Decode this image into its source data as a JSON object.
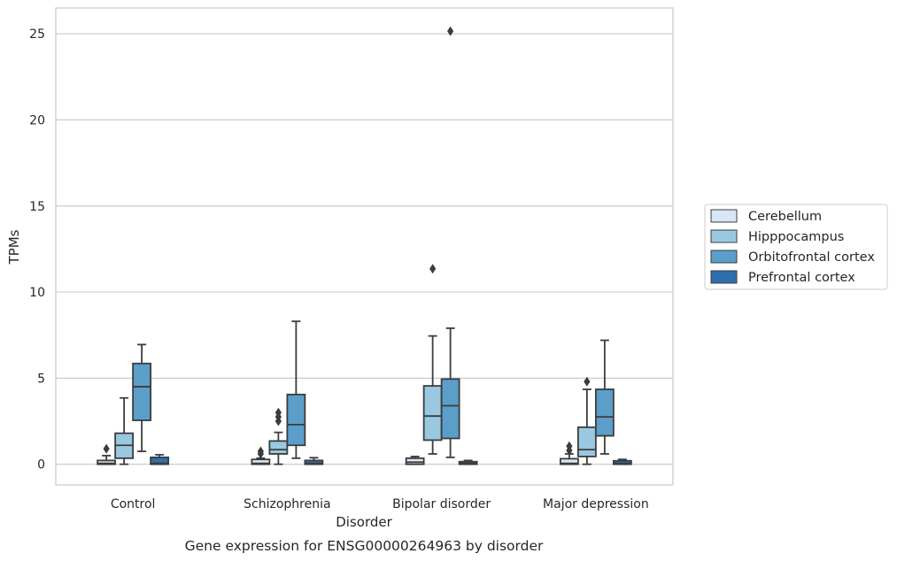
{
  "caption": "Gene expression for ENSG00000264963 by disorder",
  "chart_data": {
    "type": "box",
    "xlabel": "Disorder",
    "ylabel": "TPMs",
    "ylim": [
      -1.2,
      26.5
    ],
    "yticks": [
      0,
      5,
      10,
      15,
      20,
      25
    ],
    "grid": "horizontal",
    "legend_position": "right",
    "categories": [
      "Control",
      "Schizophrenia",
      "Bipolar disorder",
      "Major depression"
    ],
    "series": [
      {
        "name": "Cerebellum",
        "color": "#d8e7f5",
        "boxes": [
          {
            "whislo": 0,
            "q1": 0,
            "med": 0.05,
            "q3": 0.22,
            "whishi": 0.5,
            "fliers": [
              0.9
            ]
          },
          {
            "whislo": 0,
            "q1": 0,
            "med": 0.05,
            "q3": 0.28,
            "whishi": 0.35,
            "fliers": [
              0.6,
              0.75
            ]
          },
          {
            "whislo": 0,
            "q1": 0,
            "med": 0.12,
            "q3": 0.35,
            "whishi": 0.45,
            "fliers": []
          },
          {
            "whislo": 0,
            "q1": 0,
            "med": 0.05,
            "q3": 0.32,
            "whishi": 0.6,
            "fliers": [
              0.8,
              1.05
            ]
          }
        ]
      },
      {
        "name": "Hipppocampus",
        "color": "#9ac8e0",
        "boxes": [
          {
            "whislo": 0,
            "q1": 0.35,
            "med": 1.1,
            "q3": 1.8,
            "whishi": 3.85,
            "fliers": []
          },
          {
            "whislo": 0,
            "q1": 0.6,
            "med": 0.85,
            "q3": 1.35,
            "whishi": 1.85,
            "fliers": [
              2.5,
              2.75,
              3.0
            ]
          },
          {
            "whislo": 0.6,
            "q1": 1.4,
            "med": 2.8,
            "q3": 4.55,
            "whishi": 7.45,
            "fliers": [
              11.35
            ]
          },
          {
            "whislo": 0,
            "q1": 0.45,
            "med": 0.85,
            "q3": 2.15,
            "whishi": 4.35,
            "fliers": [
              4.8
            ]
          }
        ]
      },
      {
        "name": "Orbitofrontal cortex",
        "color": "#5a9ec9",
        "boxes": [
          {
            "whislo": 0.75,
            "q1": 2.55,
            "med": 4.5,
            "q3": 5.85,
            "whishi": 6.95,
            "fliers": []
          },
          {
            "whislo": 0.35,
            "q1": 1.1,
            "med": 2.3,
            "q3": 4.05,
            "whishi": 8.3,
            "fliers": []
          },
          {
            "whislo": 0.4,
            "q1": 1.5,
            "med": 3.4,
            "q3": 4.95,
            "whishi": 7.9,
            "fliers": [
              25.15
            ]
          },
          {
            "whislo": 0.6,
            "q1": 1.65,
            "med": 2.75,
            "q3": 4.35,
            "whishi": 7.2,
            "fliers": []
          }
        ]
      },
      {
        "name": "Prefrontal cortex",
        "color": "#2e6fac",
        "boxes": [
          {
            "whislo": 0,
            "q1": 0,
            "med": 0.05,
            "q3": 0.4,
            "whishi": 0.55,
            "fliers": []
          },
          {
            "whislo": 0,
            "q1": 0,
            "med": 0.05,
            "q3": 0.22,
            "whishi": 0.38,
            "fliers": []
          },
          {
            "whislo": 0,
            "q1": 0,
            "med": 0.05,
            "q3": 0.15,
            "whishi": 0.22,
            "fliers": []
          },
          {
            "whislo": 0,
            "q1": 0,
            "med": 0.05,
            "q3": 0.2,
            "whishi": 0.28,
            "fliers": []
          }
        ]
      }
    ]
  }
}
